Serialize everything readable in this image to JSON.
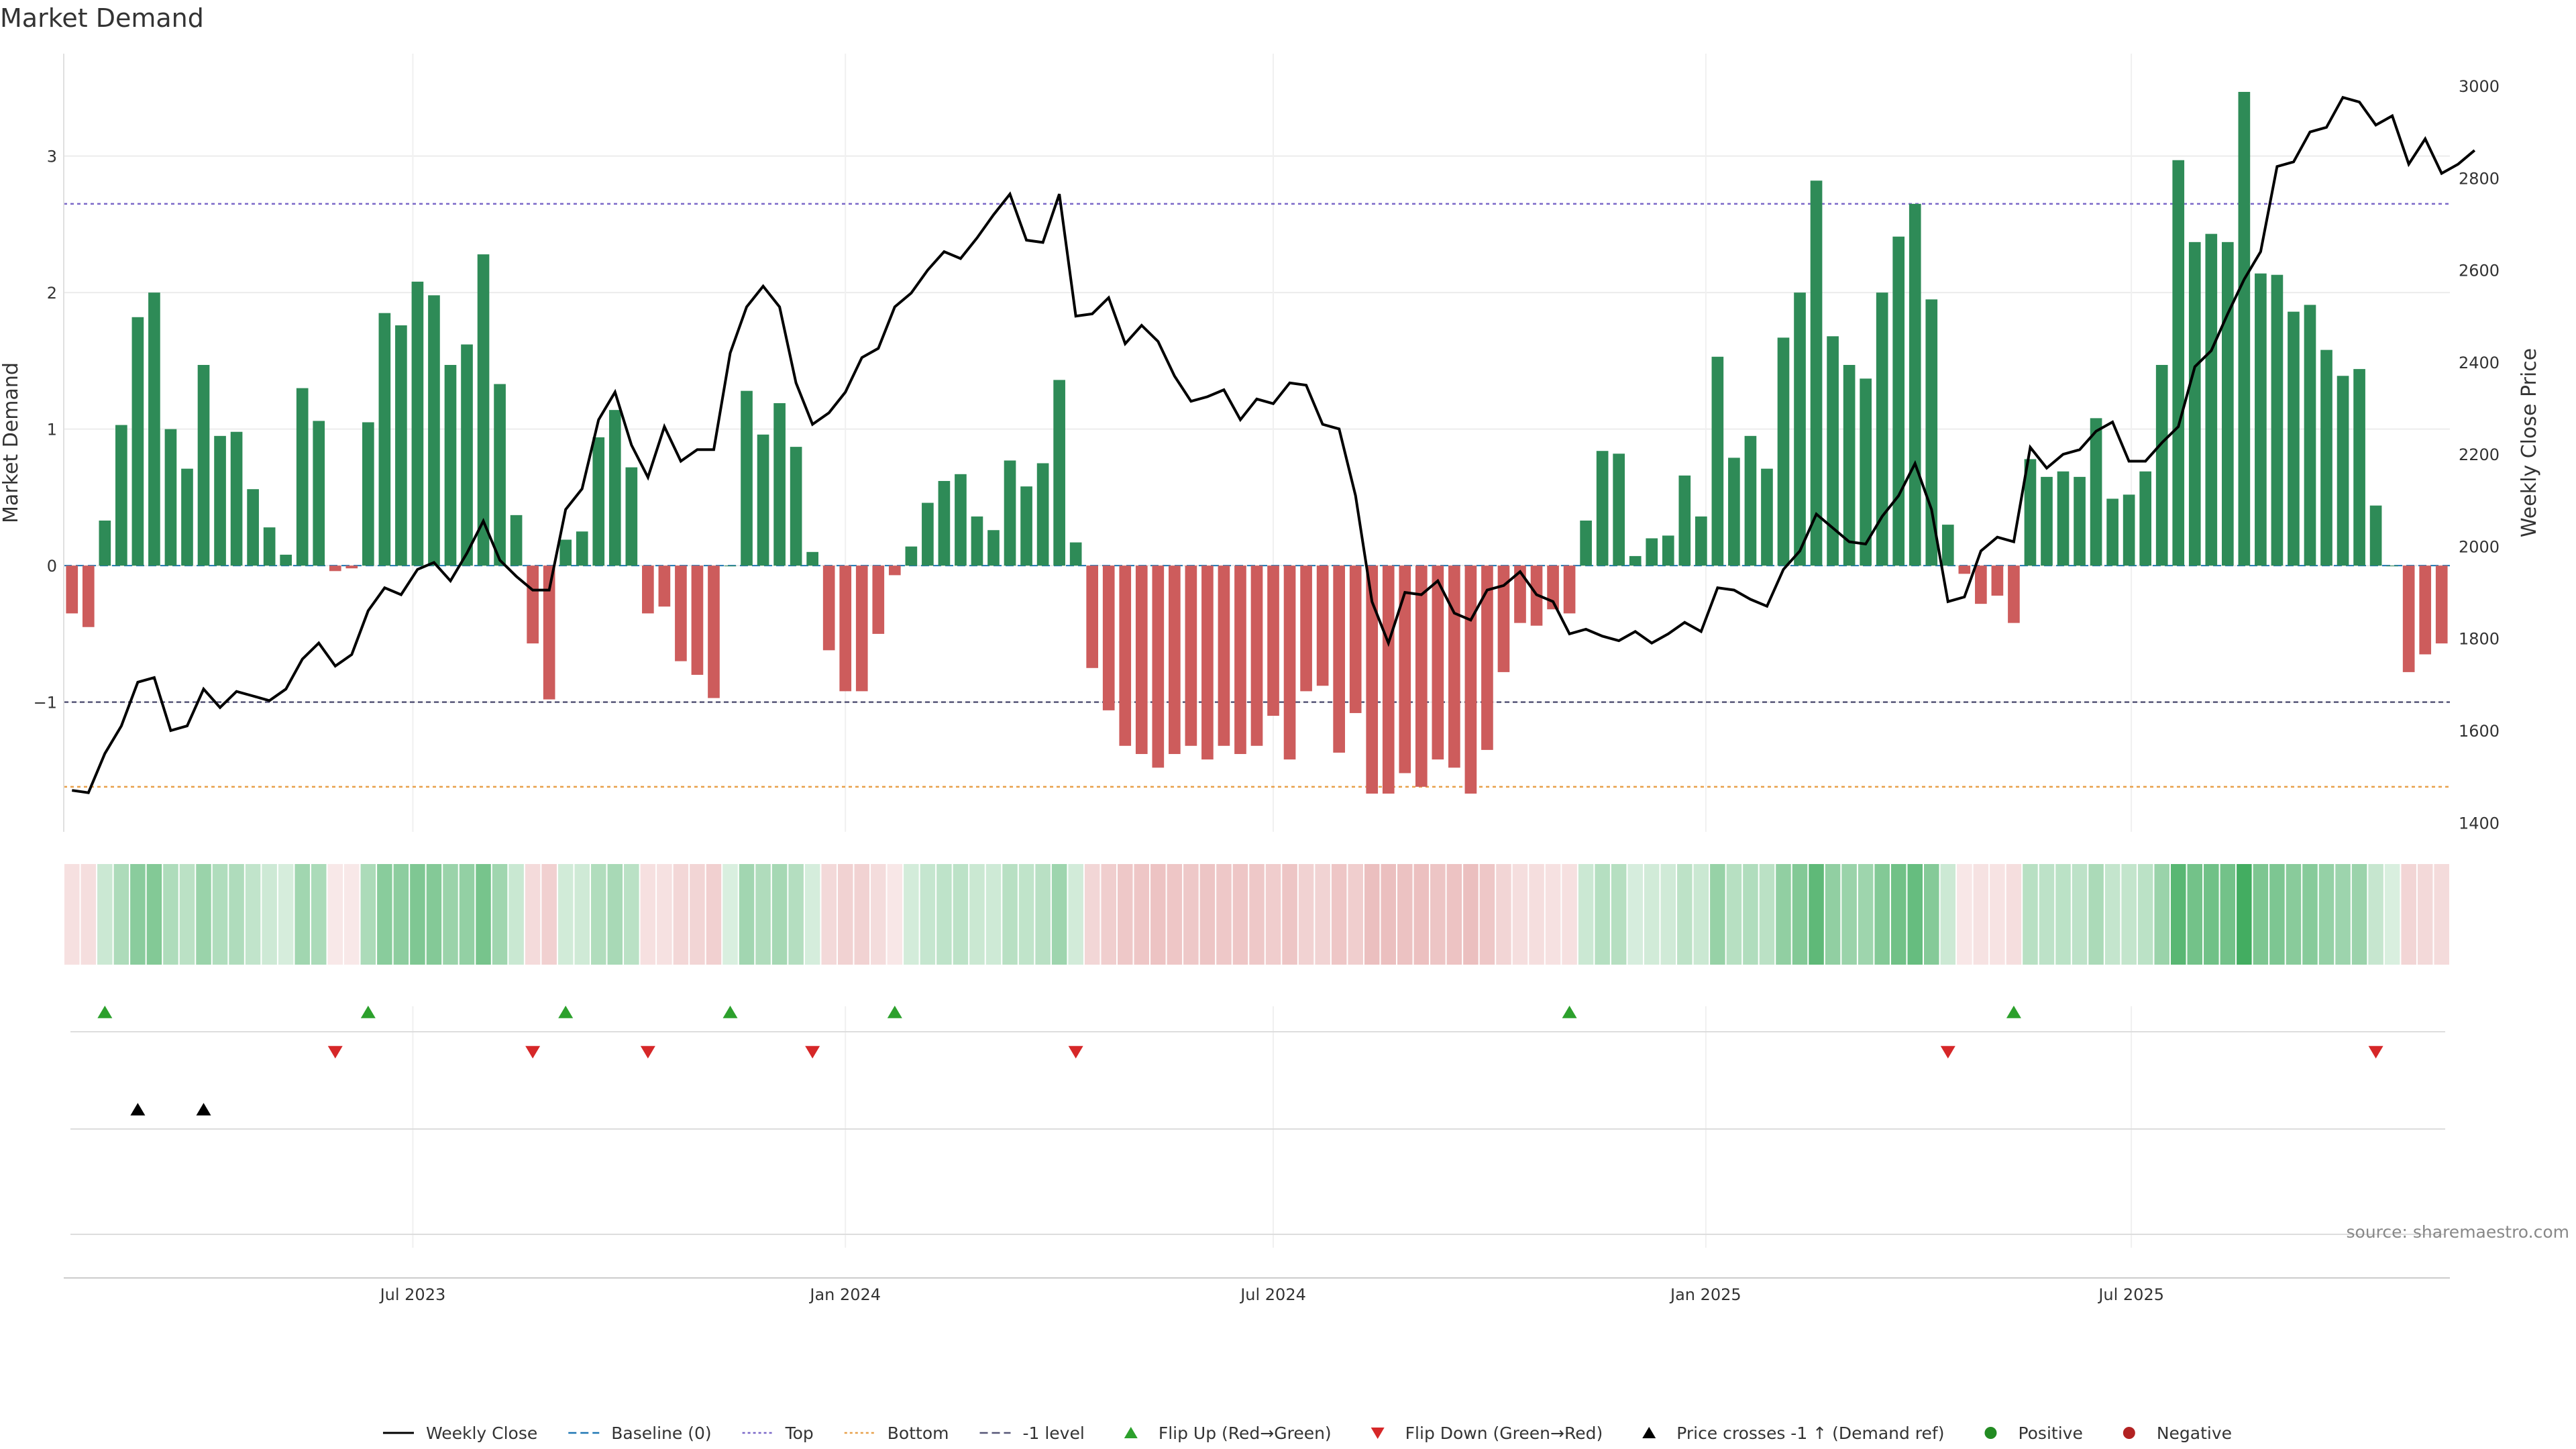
{
  "chart_data": {
    "type": "bar",
    "title": "Market Demand",
    "ylabel_left": "Market Demand",
    "ylabel_right": "Weekly Close Price",
    "source": "source: sharemaestro.com",
    "grid": true,
    "legend_position": "bottom",
    "ylim_left": [
      -1.95,
      3.75
    ],
    "ylim_right": [
      1380,
      3070
    ],
    "left_ticks": [
      "−1",
      "0",
      "1",
      "2",
      "3"
    ],
    "left_tick_values": [
      -1,
      0,
      1,
      2,
      3
    ],
    "right_ticks": [
      "1400",
      "1600",
      "1800",
      "2000",
      "2200",
      "2400",
      "2600",
      "2800",
      "3000"
    ],
    "right_tick_values": [
      1400,
      1600,
      1800,
      2000,
      2200,
      2400,
      2600,
      2800,
      3000
    ],
    "x_start": "2023-02-06",
    "x_step_days": 7,
    "x_ticks": [
      {
        "label": "Jul 2023",
        "date": "2023-07-01"
      },
      {
        "label": "Jan 2024",
        "date": "2024-01-01"
      },
      {
        "label": "Jul 2024",
        "date": "2024-07-01"
      },
      {
        "label": "Jan 2025",
        "date": "2025-01-01"
      },
      {
        "label": "Jul 2025",
        "date": "2025-07-01"
      }
    ],
    "reference_lines": {
      "baseline": 0,
      "top": 2.65,
      "bottom": -1.62,
      "minus_one_level": -1
    },
    "series": [
      {
        "name": "Market Demand",
        "values": [
          -0.35,
          -0.45,
          0.33,
          1.03,
          1.82,
          2.0,
          1.0,
          0.71,
          1.47,
          0.95,
          0.98,
          0.56,
          0.28,
          0.08,
          1.3,
          1.06,
          -0.04,
          -0.02,
          1.05,
          1.85,
          1.76,
          2.08,
          1.98,
          1.47,
          1.62,
          2.28,
          1.33,
          0.37,
          -0.57,
          -0.98,
          0.19,
          0.25,
          0.94,
          1.14,
          0.72,
          -0.35,
          -0.3,
          -0.7,
          -0.8,
          -0.97,
          0.0,
          1.28,
          0.96,
          1.19,
          0.87,
          0.1,
          -0.62,
          -0.92,
          -0.92,
          -0.5,
          -0.07,
          0.14,
          0.46,
          0.62,
          0.67,
          0.36,
          0.26,
          0.77,
          0.58,
          0.75,
          1.36,
          0.17,
          -0.75,
          -1.06,
          -1.32,
          -1.38,
          -1.48,
          -1.38,
          -1.32,
          -1.42,
          -1.32,
          -1.38,
          -1.32,
          -1.1,
          -1.42,
          -0.92,
          -0.88,
          -1.37,
          -1.08,
          -1.67,
          -1.67,
          -1.52,
          -1.62,
          -1.42,
          -1.48,
          -1.67,
          -1.35,
          -0.78,
          -0.42,
          -0.44,
          -0.32,
          -0.35,
          0.33,
          0.84,
          0.82,
          0.07,
          0.2,
          0.22,
          0.66,
          0.36,
          1.53,
          0.79,
          0.95,
          0.71,
          1.67,
          2.0,
          2.82,
          1.68,
          1.47,
          1.37,
          2.0,
          2.41,
          2.65,
          1.95,
          0.3,
          -0.06,
          -0.28,
          -0.22,
          -0.42,
          0.78,
          0.65,
          0.69,
          0.65,
          1.08,
          0.49,
          0.52,
          0.69,
          1.47,
          2.97,
          2.37,
          2.43,
          2.37,
          3.47,
          2.14,
          2.13,
          1.86,
          1.91,
          1.58,
          1.39,
          1.44,
          0.44,
          0.0,
          -0.78,
          -0.65,
          -0.57
        ]
      },
      {
        "name": "Weekly Close",
        "values": [
          1470,
          1465,
          1550,
          1610,
          1705,
          1715,
          1600,
          1610,
          1690,
          1650,
          1685,
          1675,
          1665,
          1690,
          1755,
          1790,
          1740,
          1765,
          1860,
          1910,
          1895,
          1950,
          1965,
          1925,
          1985,
          2055,
          1970,
          1935,
          1905,
          1905,
          2080,
          2125,
          2275,
          2335,
          2220,
          2150,
          2260,
          2185,
          2210,
          2210,
          2420,
          2520,
          2565,
          2520,
          2355,
          2265,
          2290,
          2335,
          2410,
          2430,
          2520,
          2550,
          2600,
          2640,
          2625,
          2670,
          2720,
          2765,
          2665,
          2660,
          2765,
          2500,
          2505,
          2540,
          2440,
          2480,
          2445,
          2370,
          2315,
          2325,
          2340,
          2275,
          2320,
          2310,
          2355,
          2350,
          2265,
          2255,
          2110,
          1880,
          1790,
          1900,
          1895,
          1925,
          1855,
          1840,
          1905,
          1915,
          1945,
          1895,
          1880,
          1810,
          1820,
          1805,
          1795,
          1815,
          1790,
          1810,
          1835,
          1815,
          1910,
          1905,
          1885,
          1870,
          1950,
          1990,
          2070,
          2040,
          2010,
          2005,
          2065,
          2110,
          2180,
          2080,
          1880,
          1890,
          1990,
          2020,
          2010,
          2215,
          2170,
          2200,
          2210,
          2250,
          2270,
          2185,
          2185,
          2225,
          2260,
          2390,
          2425,
          2505,
          2580,
          2640,
          2825,
          2835,
          2900,
          2910,
          2975,
          2965,
          2915,
          2935,
          2830,
          2885,
          2810,
          2830,
          2860
        ]
      }
    ],
    "signals": {
      "flip_up_indices": [
        2,
        18,
        30,
        40,
        50,
        91,
        118
      ],
      "flip_down_indices": [
        16,
        28,
        35,
        45,
        61,
        114,
        140
      ],
      "price_cross_indices": [
        4,
        8
      ]
    },
    "legend": [
      {
        "label": "Weekly Close",
        "kind": "line",
        "color": "#000000"
      },
      {
        "label": "Baseline (0)",
        "kind": "dash",
        "color": "#1f77b4"
      },
      {
        "label": "Top",
        "kind": "dot",
        "color": "#7b68c8"
      },
      {
        "label": "Bottom",
        "kind": "dot",
        "color": "#e8a04a"
      },
      {
        "label": "-1 level",
        "kind": "dash",
        "color": "#555577"
      },
      {
        "label": "Flip Up (Red→Green)",
        "kind": "tri-up",
        "color": "#2ca02c"
      },
      {
        "label": "Flip Down (Green→Red)",
        "kind": "tri-down",
        "color": "#d62728"
      },
      {
        "label": "Price crosses -1 ↑ (Demand ref)",
        "kind": "tri-up",
        "color": "#000000"
      },
      {
        "label": "Positive",
        "kind": "circle",
        "color": "#228b22"
      },
      {
        "label": "Negative",
        "kind": "circle",
        "color": "#b22222"
      }
    ],
    "colors": {
      "positive": "#2e8b57",
      "negative": "#cd5c5c",
      "line": "#000000",
      "top": "#7b68c8",
      "bottom": "#e8a04a",
      "minus_one": "#555577",
      "baseline": "#1f77b4"
    }
  }
}
